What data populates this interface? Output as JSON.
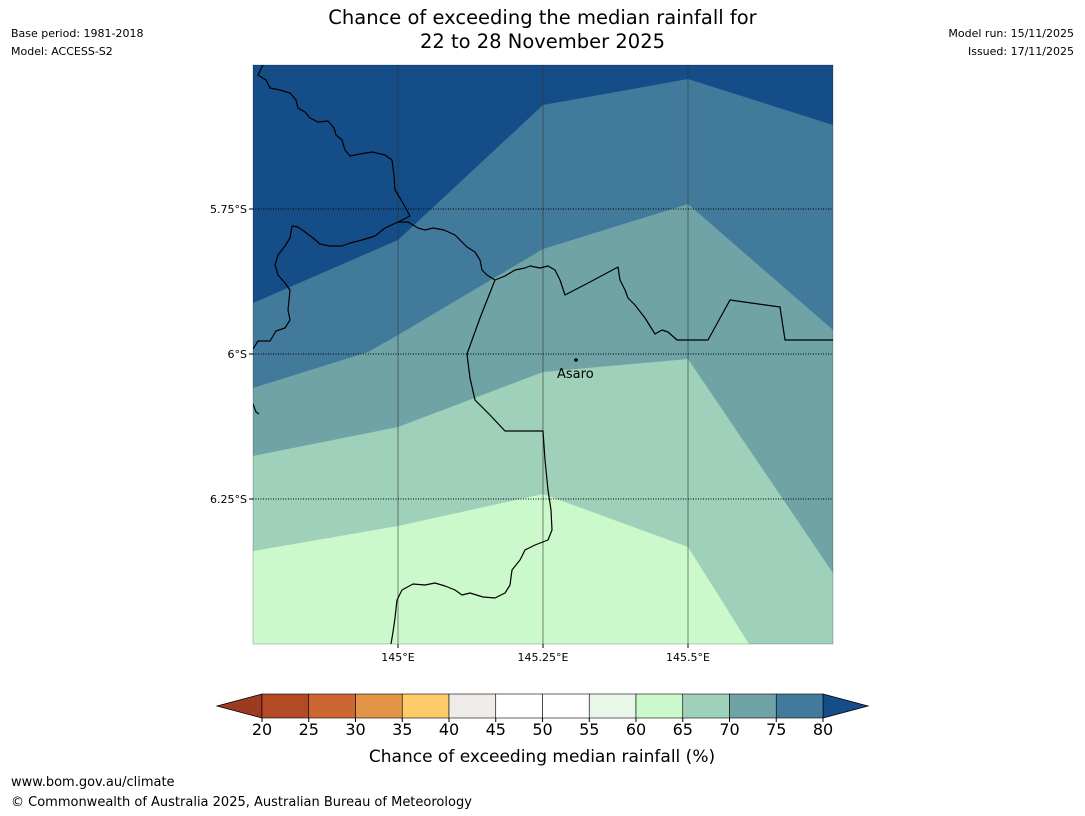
{
  "header": {
    "title_line1": "Chance of exceeding the median rainfall for",
    "title_line2": "22 to 28 November 2025",
    "base_period": "Base period: 1981-2018",
    "model": "Model: ACCESS-S2",
    "model_run": "Model run: 15/11/2025",
    "issued": "Issued: 17/11/2025"
  },
  "map": {
    "lat_labels": [
      "5.75°S",
      "6°S",
      "6.25°S"
    ],
    "lon_labels": [
      "145°E",
      "145.25°E",
      "145.5°E"
    ],
    "place_label": "Asaro",
    "zone_colors": {
      "80_plus": "#154d89",
      "75_80": "#417a9b",
      "70_75": "#6fa3a6",
      "65_70": "#9fd0ba",
      "60_65": "#cbf9cb"
    }
  },
  "legend": {
    "title": "Chance of exceeding median rainfall (%)",
    "ticks": [
      "20",
      "25",
      "30",
      "35",
      "40",
      "45",
      "50",
      "55",
      "60",
      "65",
      "70",
      "75",
      "80"
    ],
    "low_extend_color": "#9c3a22",
    "high_extend_color": "#154d89",
    "bins": [
      {
        "color": "#b24a26"
      },
      {
        "color": "#cc6632"
      },
      {
        "color": "#e29447"
      },
      {
        "color": "#fecb6b"
      },
      {
        "color": "#efebe8"
      },
      {
        "color": "#ffffff"
      },
      {
        "color": "#ffffff"
      },
      {
        "color": "#e9f7e9"
      },
      {
        "color": "#cbf9cb"
      },
      {
        "color": "#9fd0ba"
      },
      {
        "color": "#6fa3a6"
      },
      {
        "color": "#417a9b"
      }
    ]
  },
  "footer": {
    "url": "www.bom.gov.au/climate",
    "copyright": "© Commonwealth of Australia 2025, Australian Bureau of Meteorology"
  }
}
